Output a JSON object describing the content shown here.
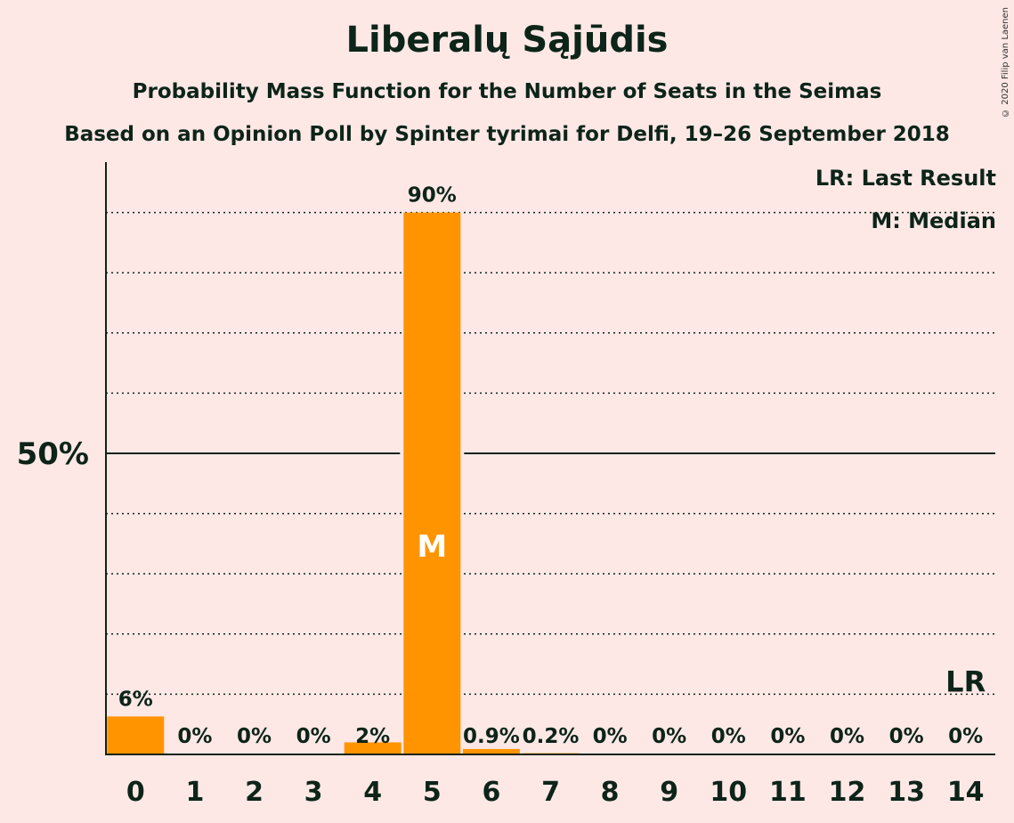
{
  "chart_data": {
    "type": "bar",
    "title": "Liberalų Sąjūdis",
    "subtitle": "Probability Mass Function for the Number of Seats in the Seimas",
    "subtitle2": "Based on an Opinion Poll by Spinter tyrimai for Delfi, 19–26 September 2018",
    "copyright": "© 2020 Filip van Laenen",
    "legend_lr": "LR: Last Result",
    "legend_m": "M: Median",
    "categories": [
      "0",
      "1",
      "2",
      "3",
      "4",
      "5",
      "6",
      "7",
      "8",
      "9",
      "10",
      "11",
      "12",
      "13",
      "14"
    ],
    "values": [
      6.3,
      0,
      0,
      0,
      2,
      90,
      0.9,
      0.2,
      0,
      0,
      0,
      0,
      0,
      0,
      0
    ],
    "value_labels": [
      "6%",
      "0%",
      "0%",
      "0%",
      "2%",
      "90%",
      "0.9%",
      "0.2%",
      "0%",
      "0%",
      "0%",
      "0%",
      "0%",
      "0%",
      "0%"
    ],
    "ylim": [
      0,
      100
    ],
    "ytick_label": "50%",
    "ytick_value": 50,
    "gridlines": [
      10,
      20,
      30,
      40,
      60,
      70,
      80,
      90
    ],
    "median_category": "5",
    "median_marker": "M",
    "last_result_category": "14",
    "last_result_marker": "LR",
    "bar_color": "#ff9400",
    "legend_placement": "top-right"
  }
}
